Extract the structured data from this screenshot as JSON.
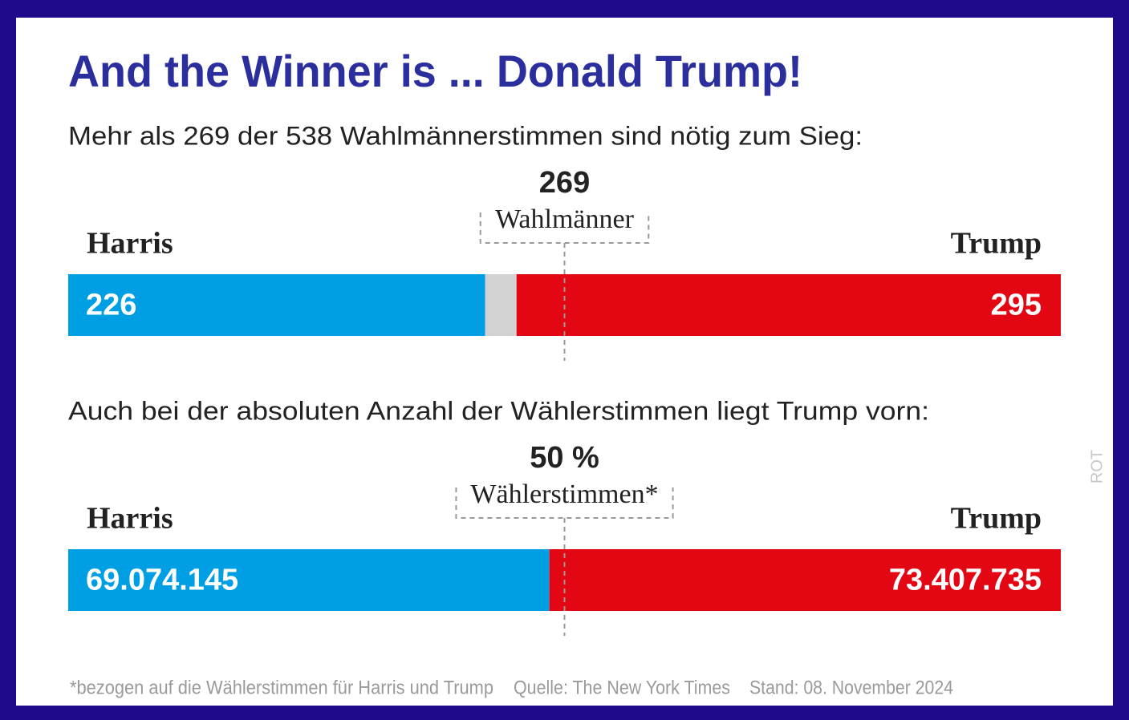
{
  "title": "And the Winner is ... Donald Trump!",
  "chart_data": [
    {
      "type": "stacked-hbar",
      "title": "Mehr als 269 der 538 Wahlmännerstimmen sind nötig zum Sieg:",
      "xlim": [
        0,
        538
      ],
      "threshold": 269,
      "threshold_label": "Wahlmänner",
      "series": [
        {
          "name": "Harris",
          "color": "#009fe3",
          "values": [
            226
          ]
        },
        {
          "color": "#d2d2d2",
          "values": [
            17
          ]
        },
        {
          "name": "Trump",
          "color": "#e30613",
          "values": [
            295
          ]
        }
      ]
    },
    {
      "type": "stacked-hbar",
      "title": "Auch bei der absoluten Anzahl der Wählerstimmen liegt Trump vorn:",
      "xlim": [
        0,
        142481880
      ],
      "threshold": {
        "value": 50,
        "label": "50 %"
      },
      "threshold_lim": [
        0,
        100
      ],
      "threshold_label": "Wählerstimmen*",
      "series": [
        {
          "name": "Harris",
          "color": "#009fe3",
          "values": [
            69074145
          ],
          "value_labels": [
            "69.074.145"
          ]
        },
        {
          "name": "Trump",
          "color": "#e30613",
          "values": [
            73407735
          ],
          "value_labels": [
            "73.407.735"
          ]
        }
      ]
    }
  ],
  "footer": {
    "note": "*bezogen auf die Wählerstimmen für Harris und Trump",
    "source": "Quelle: The New York Times",
    "date": "Stand: 08. November 2024",
    "credit": "ROT"
  }
}
